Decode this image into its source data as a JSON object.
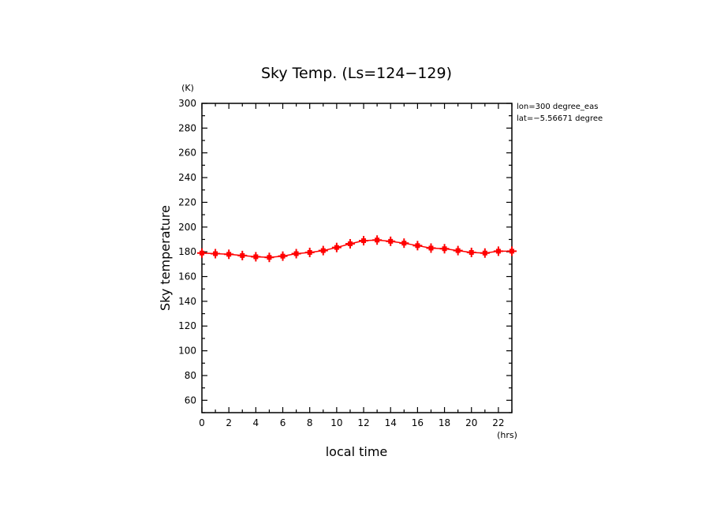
{
  "chart_data": {
    "type": "line",
    "title": "Sky Temp. (Ls=124−129)",
    "ylabel": "Sky temperature",
    "xlabel": "local time",
    "y_unit": "(K)",
    "x_unit": "(hrs)",
    "annotations": [
      "lon=300 degree_eas",
      "lat=−5.56671 degree"
    ],
    "xlim": [
      0,
      23
    ],
    "ylim": [
      50,
      300
    ],
    "x_ticks": [
      0,
      2,
      4,
      6,
      8,
      10,
      12,
      14,
      16,
      18,
      20,
      22
    ],
    "y_ticks": [
      60,
      80,
      100,
      120,
      140,
      160,
      180,
      200,
      220,
      240,
      260,
      280,
      300
    ],
    "series": [
      {
        "color": "#ff0000",
        "x": [
          0,
          1,
          2,
          3,
          4,
          5,
          6,
          7,
          8,
          9,
          10,
          11,
          12,
          13,
          14,
          15,
          16,
          17,
          18,
          19,
          20,
          21,
          22,
          23
        ],
        "values": [
          179,
          178.5,
          178,
          177,
          176,
          175.5,
          176.5,
          178.5,
          179.5,
          181,
          183.5,
          186.5,
          189,
          189.5,
          188.5,
          187,
          185,
          183,
          182.5,
          181,
          179.5,
          179,
          180.5,
          180.5
        ]
      }
    ]
  }
}
